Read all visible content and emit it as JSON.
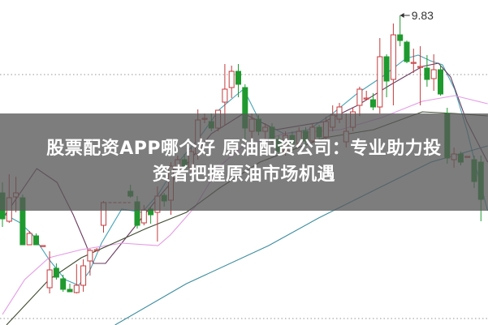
{
  "banner": {
    "title_line1": "股票配资APP哪个好 原油配资公司：专业助力投",
    "title_line2": "资者把握原油市场机遇"
  },
  "chart_data": {
    "type": "candlestick",
    "title": "",
    "xlabel": "",
    "ylabel": "",
    "ylim": [
      6.01,
      10.02
    ],
    "grid": "dotted horizontal",
    "gridlines": [
      9.1,
      6.09
    ],
    "colors": {
      "up": "#c43a3e",
      "down": "#1f9a2f",
      "ma5": "#45a3b5",
      "ma10": "#6a3a5e",
      "ma20": "#e49ae6",
      "ma30": "#3c4a2e",
      "ma60": "#3b8c9e",
      "grid": "#aaaaaa",
      "annotation": "#333333"
    },
    "annotation": {
      "label": "9.83",
      "index": 59,
      "price": 9.83
    },
    "candles_fields": [
      "index",
      "open",
      "high",
      "low",
      "close"
    ],
    "candles": [
      [
        0,
        7.64,
        7.77,
        7.22,
        7.32
      ],
      [
        1,
        7.29,
        7.87,
        7.27,
        7.58
      ],
      [
        2,
        7.59,
        7.84,
        7.4,
        7.64
      ],
      [
        3,
        7.58,
        7.62,
        7.0,
        7.0
      ],
      [
        4,
        7.0,
        7.17,
        7.0,
        7.14
      ],
      [
        5,
        7.11,
        7.14,
        7.0,
        7.0
      ],
      [
        6,
        6.99,
        6.99,
        6.99,
        6.99
      ],
      [
        7,
        6.47,
        6.92,
        6.4,
        6.69
      ],
      [
        8,
        6.71,
        6.77,
        6.57,
        6.6
      ],
      [
        9,
        6.58,
        6.63,
        6.42,
        6.45
      ],
      [
        10,
        6.45,
        6.52,
        6.42,
        6.42
      ],
      [
        11,
        6.41,
        6.76,
        6.4,
        6.5
      ],
      [
        12,
        6.5,
        6.82,
        6.42,
        6.74
      ],
      [
        13,
        6.8,
        6.95,
        6.62,
        6.93
      ],
      [
        14,
        6.94,
        6.96,
        6.94,
        6.94
      ],
      [
        15,
        7.24,
        7.54,
        7.15,
        7.52
      ],
      [
        19,
        7.66,
        7.74,
        7.58,
        7.6
      ],
      [
        20,
        7.53,
        7.6,
        7.2,
        7.24
      ],
      [
        21,
        7.27,
        7.49,
        7.24,
        7.43
      ],
      [
        22,
        7.44,
        7.46,
        7.26,
        7.37
      ],
      [
        23,
        7.4,
        7.72,
        7.04,
        7.6
      ],
      [
        24,
        7.61,
        7.64,
        7.47,
        7.54
      ],
      [
        25,
        7.55,
        8.02,
        7.37,
        7.97
      ],
      [
        26,
        7.9,
        8.1,
        7.8,
        8.05
      ],
      [
        27,
        8.05,
        8.12,
        7.92,
        7.95
      ],
      [
        28,
        7.95,
        8.2,
        7.9,
        8.15
      ],
      [
        29,
        8.12,
        8.67,
        8.05,
        8.54
      ],
      [
        30,
        8.55,
        8.62,
        8.5,
        8.56
      ],
      [
        31,
        8.52,
        8.62,
        8.4,
        8.44
      ],
      [
        32,
        8.44,
        8.66,
        8.4,
        8.66
      ],
      [
        33,
        8.76,
        9.23,
        8.47,
        8.92
      ],
      [
        34,
        8.94,
        9.21,
        8.81,
        9.14
      ],
      [
        35,
        9.14,
        9.23,
        8.82,
        8.98
      ],
      [
        36,
        8.94,
        8.98,
        8.3,
        8.44
      ],
      [
        37,
        8.4,
        8.62,
        8.3,
        8.55
      ],
      [
        38,
        8.55,
        8.6,
        8.35,
        8.4
      ],
      [
        39,
        8.4,
        8.5,
        8.2,
        8.45
      ],
      [
        40,
        8.45,
        8.5,
        8.25,
        8.3
      ],
      [
        41,
        8.3,
        8.35,
        8.1,
        8.15
      ],
      [
        42,
        8.15,
        8.4,
        8.1,
        8.35
      ],
      [
        43,
        8.35,
        8.4,
        8.2,
        8.25
      ],
      [
        44,
        8.25,
        8.45,
        8.2,
        8.4
      ],
      [
        45,
        8.4,
        8.45,
        8.22,
        8.28
      ],
      [
        46,
        8.28,
        8.5,
        8.25,
        8.45
      ],
      [
        47,
        8.45,
        8.48,
        8.3,
        8.33
      ],
      [
        48,
        8.33,
        8.58,
        8.3,
        8.52
      ],
      [
        49,
        8.45,
        8.72,
        8.4,
        8.6
      ],
      [
        50,
        8.55,
        8.75,
        8.5,
        8.7
      ],
      [
        51,
        8.27,
        8.62,
        8.2,
        8.4
      ],
      [
        52,
        8.45,
        8.69,
        8.4,
        8.64
      ],
      [
        53,
        8.72,
        8.95,
        8.59,
        8.92
      ],
      [
        54,
        8.81,
        8.9,
        8.78,
        8.81
      ],
      [
        55,
        8.79,
        8.87,
        8.66,
        8.7
      ],
      [
        56,
        8.7,
        9.55,
        8.62,
        9.32
      ],
      [
        57,
        9.32,
        9.35,
        8.82,
        9.02
      ],
      [
        58,
        9.04,
        9.73,
        8.72,
        9.59
      ],
      [
        59,
        9.59,
        9.83,
        9.45,
        9.52
      ],
      [
        60,
        9.5,
        9.52,
        9.24,
        9.26
      ],
      [
        61,
        9.25,
        9.42,
        9.12,
        9.25
      ],
      [
        62,
        9.2,
        9.45,
        8.72,
        9.2
      ],
      [
        63,
        9.18,
        9.34,
        8.95,
        9.04
      ],
      [
        64,
        9.05,
        9.35,
        8.9,
        9.16
      ],
      [
        65,
        9.16,
        9.22,
        8.84,
        8.86
      ],
      [
        66,
        8.62,
        8.69,
        8.0,
        8.07
      ],
      [
        67,
        8.05,
        8.2,
        7.95,
        8.12
      ],
      [
        68,
        8.12,
        8.15,
        7.98,
        8.02
      ],
      [
        69,
        8.09,
        8.09,
        8.09,
        8.09
      ],
      [
        70,
        8.05,
        8.1,
        7.7,
        7.78
      ],
      [
        71,
        8.02,
        8.1,
        7.29,
        7.56
      ]
    ],
    "suspension_gap": {
      "from_index": 15,
      "to_index": 19,
      "price": 7.52
    },
    "moving_averages": [
      {
        "key": "ma5",
        "points": [
          [
            0,
            7.39
          ],
          [
            2.65,
            7.27
          ],
          [
            4.5,
            7.12
          ],
          [
            6.9,
            6.82
          ],
          [
            9.3,
            6.57
          ],
          [
            11.3,
            6.5
          ],
          [
            12.9,
            6.67
          ],
          [
            14.7,
            7.02
          ],
          [
            17.7,
            7.44
          ],
          [
            20.7,
            7.4
          ],
          [
            23.1,
            7.62
          ],
          [
            26.1,
            8.02
          ],
          [
            29.2,
            8.32
          ],
          [
            32.2,
            8.67
          ],
          [
            34.6,
            8.84
          ],
          [
            35.8,
            8.92
          ],
          [
            38.2,
            8.52
          ],
          [
            41.8,
            8.37
          ],
          [
            45.4,
            8.42
          ],
          [
            49.0,
            8.62
          ],
          [
            52.7,
            8.87
          ],
          [
            56.3,
            9.07
          ],
          [
            59.9,
            9.3
          ],
          [
            61.7,
            9.34
          ],
          [
            63.5,
            9.27
          ],
          [
            65.3,
            9.22
          ],
          [
            67.1,
            8.92
          ],
          [
            68.9,
            8.42
          ],
          [
            70.7,
            7.82
          ],
          [
            72,
            7.42
          ]
        ]
      },
      {
        "key": "ma10",
        "points": [
          [
            0,
            7.32
          ],
          [
            3.3,
            7.72
          ],
          [
            5.1,
            7.94
          ],
          [
            8.1,
            7.77
          ],
          [
            10.5,
            7.37
          ],
          [
            12.3,
            7.02
          ],
          [
            13.5,
            6.77
          ],
          [
            15.3,
            6.77
          ],
          [
            17.7,
            7.02
          ],
          [
            20.1,
            7.27
          ],
          [
            22.5,
            7.52
          ],
          [
            26.1,
            7.87
          ],
          [
            31.0,
            8.37
          ],
          [
            35.8,
            8.62
          ],
          [
            40.6,
            8.42
          ],
          [
            47.8,
            8.52
          ],
          [
            52.7,
            8.72
          ],
          [
            57.5,
            8.97
          ],
          [
            62.3,
            9.2
          ],
          [
            64.7,
            9.24
          ],
          [
            66.5,
            9.07
          ],
          [
            68.9,
            8.52
          ],
          [
            72,
            8.02
          ]
        ]
      },
      {
        "key": "ma20",
        "points": [
          [
            0,
            6.14
          ],
          [
            3.3,
            6.57
          ],
          [
            6.9,
            6.84
          ],
          [
            11.7,
            6.94
          ],
          [
            17.7,
            7.02
          ],
          [
            23.1,
            6.99
          ],
          [
            24.9,
            7.12
          ],
          [
            28.6,
            7.47
          ],
          [
            32.2,
            7.97
          ],
          [
            35.8,
            8.22
          ],
          [
            41.8,
            8.37
          ],
          [
            50.2,
            8.42
          ],
          [
            56.3,
            8.57
          ],
          [
            62.3,
            8.77
          ],
          [
            67.1,
            8.84
          ],
          [
            72,
            8.74
          ]
        ]
      },
      {
        "key": "ma30",
        "points": [
          [
            0.6,
            6.01
          ],
          [
            6.9,
            6.57
          ],
          [
            11.7,
            6.84
          ],
          [
            16.5,
            7.02
          ],
          [
            21.3,
            7.2
          ],
          [
            27.3,
            7.4
          ],
          [
            32.2,
            7.7
          ],
          [
            38.2,
            8.02
          ],
          [
            47.8,
            8.32
          ],
          [
            55.1,
            8.42
          ],
          [
            62.3,
            8.64
          ],
          [
            67.1,
            8.62
          ],
          [
            72,
            8.59
          ]
        ]
      },
      {
        "key": "ma60",
        "points": [
          [
            16.7,
            6.01
          ],
          [
            27.3,
            6.52
          ],
          [
            39.5,
            6.99
          ],
          [
            46.9,
            7.33
          ],
          [
            55.1,
            7.67
          ],
          [
            63.6,
            8.02
          ],
          [
            72,
            8.22
          ]
        ]
      }
    ]
  }
}
